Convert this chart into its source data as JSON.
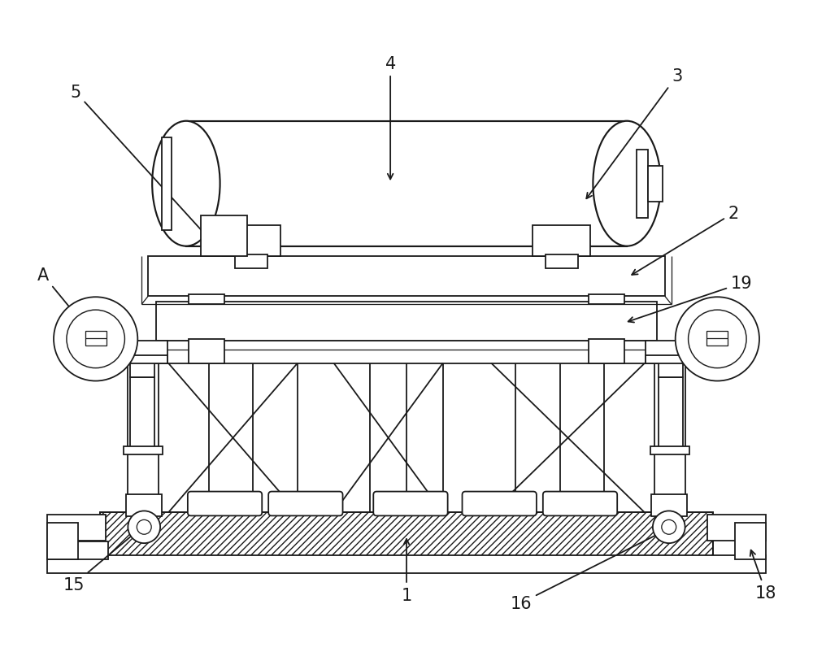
{
  "fig_width": 10.0,
  "fig_height": 8.03,
  "dpi": 100,
  "bg_color": "#ffffff",
  "line_color": "#1a1a1a",
  "lw": 1.3
}
